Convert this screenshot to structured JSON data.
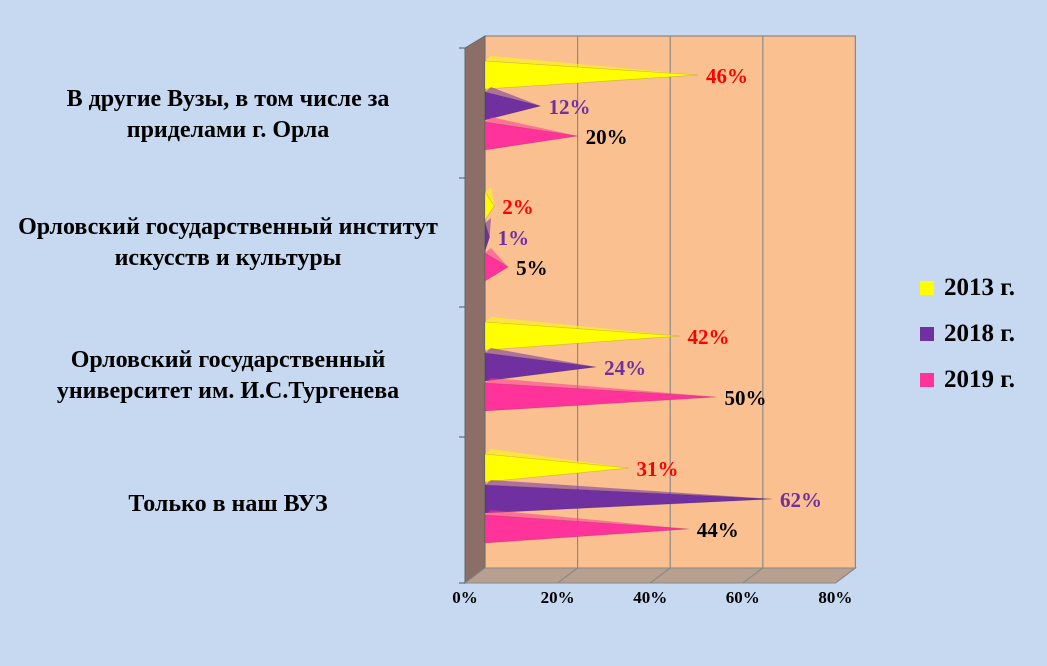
{
  "chart_data": {
    "type": "bar",
    "orientation": "horizontal",
    "categories": [
      "В другие Вузы, в том числе за приделами г. Орла",
      "Орловский государственный институт искусств и культуры",
      "Орловский государственный университет им. И.С.Тургенева",
      "Только в наш ВУЗ"
    ],
    "series": [
      {
        "name": "2013 г.",
        "color": "#ffff00",
        "label_color": "#ff0000",
        "values": [
          46,
          2,
          42,
          31
        ],
        "labels": [
          "46%",
          "2%",
          "42%",
          "31%"
        ]
      },
      {
        "name": "2018 г.",
        "color": "#7030a0",
        "label_color": "#7030a0",
        "values": [
          12,
          1,
          24,
          62
        ],
        "labels": [
          "12%",
          "1%",
          "24%",
          "62%"
        ]
      },
      {
        "name": "2019 г.",
        "color": "#ff3399",
        "label_color": "#000000",
        "values": [
          20,
          5,
          50,
          44
        ],
        "labels": [
          "20%",
          "5%",
          "50%",
          "44%"
        ]
      }
    ],
    "x_ticks": [
      "0%",
      "20%",
      "40%",
      "60%",
      "80%"
    ],
    "xlim": [
      0,
      80
    ],
    "grid": true,
    "legend_position": "right",
    "wall_color": "#fac090",
    "side_color": "#8b6f66"
  }
}
